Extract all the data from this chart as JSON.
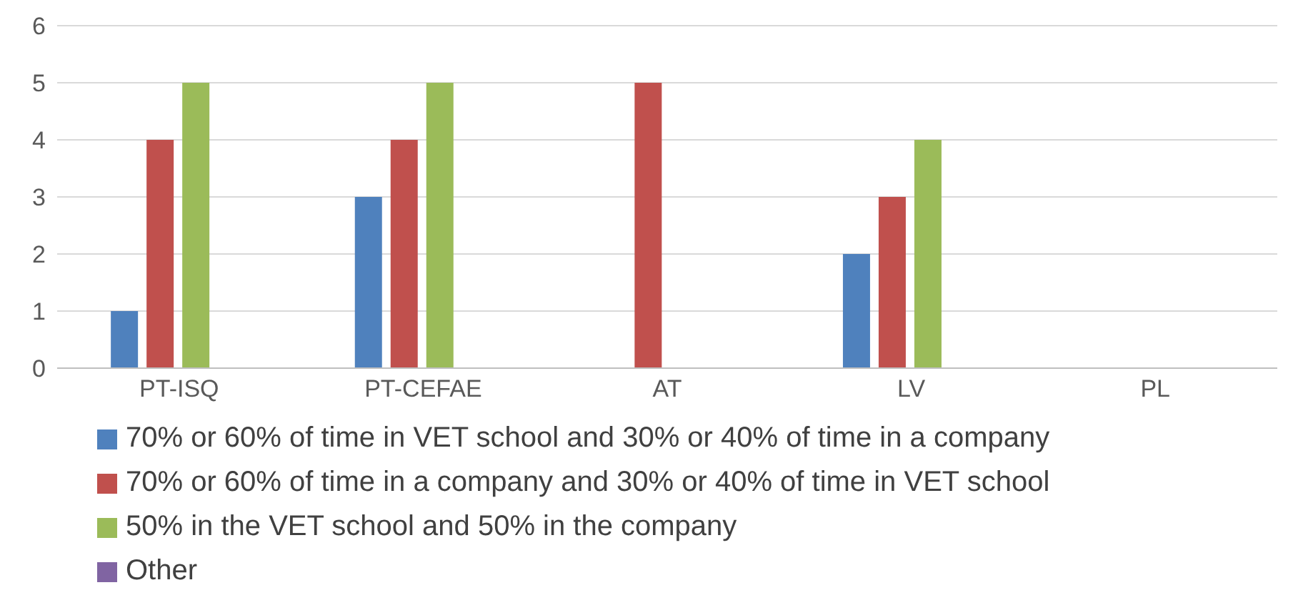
{
  "chart_data": {
    "type": "bar",
    "categories": [
      "PT-ISQ",
      "PT-CEFAE",
      "AT",
      "LV",
      "PL"
    ],
    "series": [
      {
        "name": "70% or 60% of time in VET school and 30% or 40% of time in a company",
        "color": "#4f81bd",
        "values": [
          1,
          3,
          0,
          2,
          0
        ]
      },
      {
        "name": "70% or 60% of time in a company and 30% or 40% of time in VET school",
        "color": "#c0504d",
        "values": [
          4,
          4,
          5,
          3,
          0
        ]
      },
      {
        "name": "50% in the VET school and 50% in the company",
        "color": "#9bbb59",
        "values": [
          5,
          5,
          0,
          4,
          0
        ]
      },
      {
        "name": "Other",
        "color": "#8064a2",
        "values": [
          0,
          0,
          0,
          0,
          0
        ]
      }
    ],
    "ylim": [
      0,
      6
    ],
    "yticks": [
      0,
      1,
      2,
      3,
      4,
      5,
      6
    ],
    "grid": "y",
    "legend": "bottom"
  }
}
